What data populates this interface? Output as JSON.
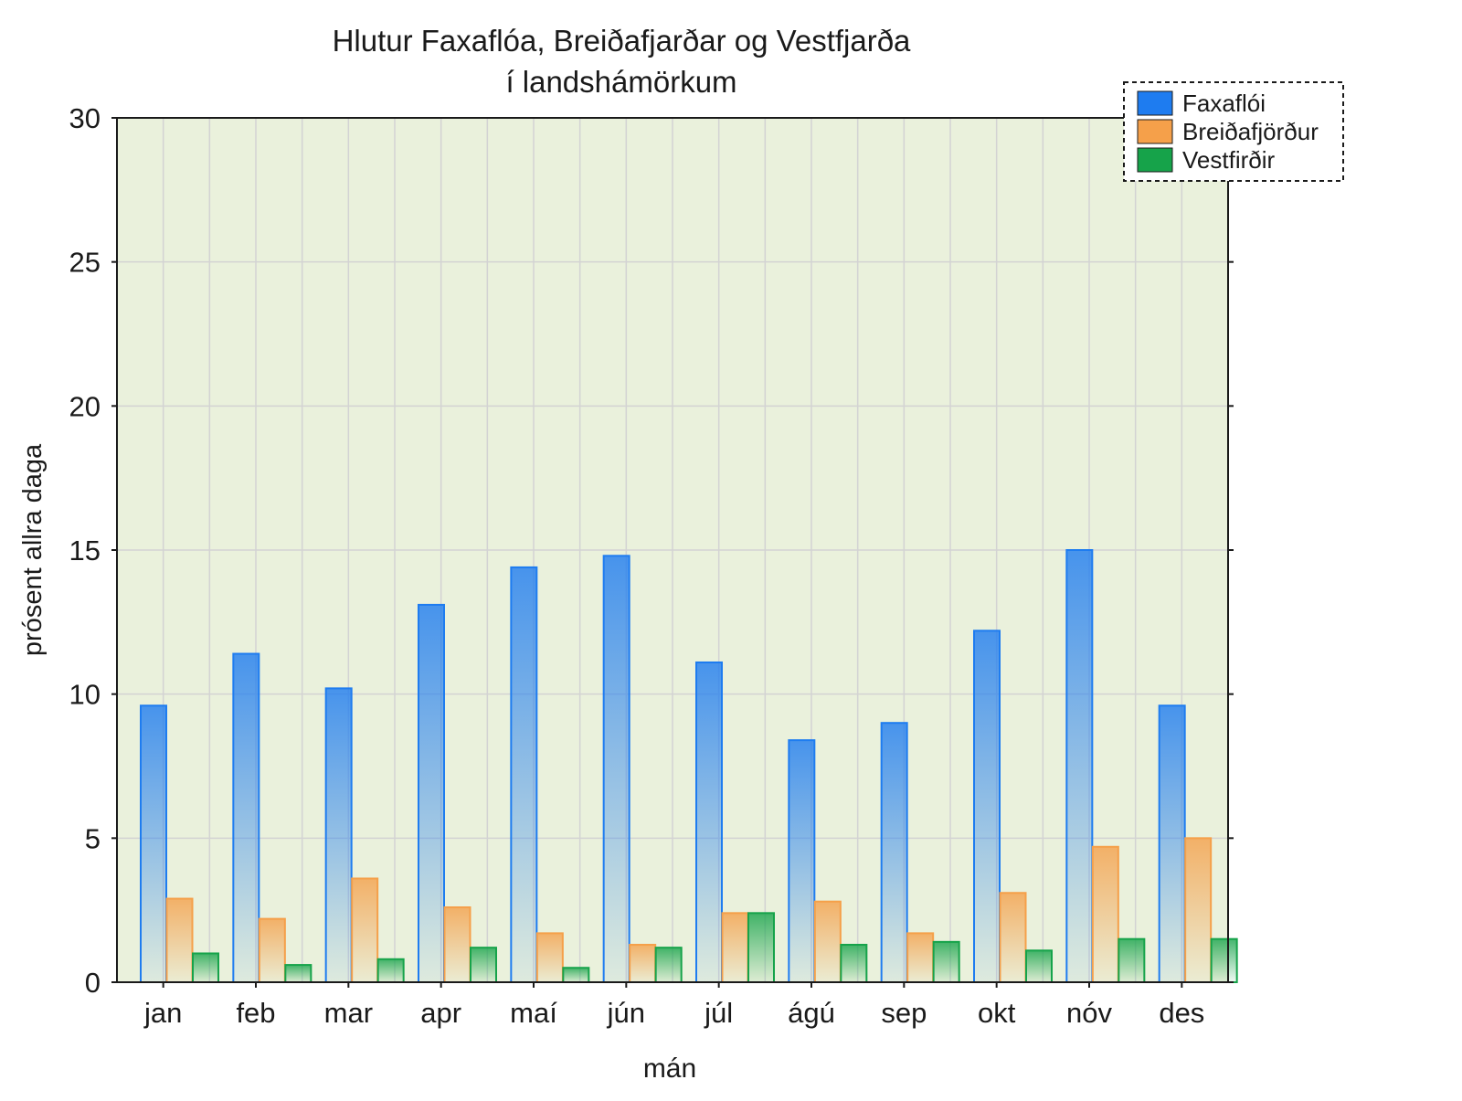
{
  "chart_data": {
    "type": "bar",
    "title": [
      "Hlutur Faxaflóa, Breiðafjarðar og Vestfjarða",
      "í landshámörkum"
    ],
    "xlabel": "mán",
    "ylabel": "prósent allra daga",
    "ylim": [
      0,
      30
    ],
    "yticks": [
      "0",
      "5",
      "10",
      "15",
      "20",
      "25",
      "30"
    ],
    "grid": true,
    "legend_position": "top-right",
    "categories": [
      "jan",
      "feb",
      "mar",
      "apr",
      "maí",
      "jún",
      "júl",
      "ágú",
      "sep",
      "okt",
      "nóv",
      "des"
    ],
    "series": [
      {
        "name": "Faxaflói",
        "color": "#1E7CF0",
        "values": [
          9.6,
          11.4,
          10.2,
          13.1,
          14.4,
          14.8,
          11.1,
          8.4,
          9.0,
          12.2,
          15.0,
          9.6
        ]
      },
      {
        "name": "Breiðafjörður",
        "color": "#F5A04A",
        "values": [
          2.9,
          2.2,
          3.6,
          2.6,
          1.7,
          1.3,
          2.4,
          2.8,
          1.7,
          3.1,
          4.7,
          5.0
        ]
      },
      {
        "name": "Vestfirðir",
        "color": "#16A34A",
        "values": [
          1.0,
          0.6,
          0.8,
          1.2,
          0.5,
          1.2,
          2.4,
          1.3,
          1.4,
          1.1,
          1.5,
          1.5
        ]
      }
    ]
  },
  "style": {
    "plot_background": "#EAF1DC",
    "grid_color": "#D3D3D3",
    "axis_color": "#1a1a1a"
  }
}
